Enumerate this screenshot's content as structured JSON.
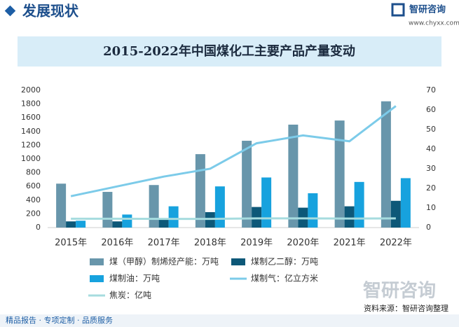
{
  "header": {
    "title": "发展现状",
    "logo": "智研咨询",
    "url": "www.chyxx.com"
  },
  "footer": {
    "slogan": "精品报告 · 专项定制 · 品质服务",
    "source": "资料来源：智研咨询整理",
    "watermark": "智研咨询"
  },
  "chart_data": {
    "type": "bar",
    "title": "2015-2022年中国煤化工主要产品产量变动",
    "categories": [
      "2015年",
      "2016年",
      "2017年",
      "2018年",
      "2019年",
      "2020年",
      "2021年",
      "2022年"
    ],
    "series": [
      {
        "name": "煤（甲醇）制烯烃产能：万吨",
        "type": "bar",
        "color": "#6896ab",
        "values": [
          640,
          520,
          620,
          1070,
          1265,
          1500,
          1560,
          1840
        ]
      },
      {
        "name": "煤制乙二醇：万吨",
        "type": "bar",
        "color": "#0d5878",
        "values": [
          90,
          90,
          120,
          225,
          300,
          290,
          310,
          390
        ]
      },
      {
        "name": "煤制油：万吨",
        "type": "bar",
        "color": "#17a2de",
        "values": [
          100,
          190,
          310,
          600,
          730,
          500,
          665,
          720
        ]
      },
      {
        "name": "煤制气：亿立方米",
        "type": "line",
        "axis": "y2",
        "color": "#7ccbe9",
        "values": [
          16,
          21,
          26,
          30,
          43,
          47,
          44,
          62
        ]
      },
      {
        "name": "焦炭：亿吨",
        "type": "line",
        "axis": "y2",
        "color": "#a6dcdf",
        "values": [
          4.5,
          4.5,
          4.4,
          4.4,
          4.7,
          4.7,
          4.6,
          4.7
        ]
      }
    ],
    "ylim": [
      0,
      2000
    ],
    "yticks": [
      0,
      200,
      400,
      600,
      800,
      1000,
      1200,
      1400,
      1600,
      1800,
      2000
    ],
    "y2lim": [
      0,
      70
    ],
    "y2ticks": [
      0,
      10,
      20,
      30,
      40,
      50,
      60,
      70
    ],
    "grid": false
  }
}
